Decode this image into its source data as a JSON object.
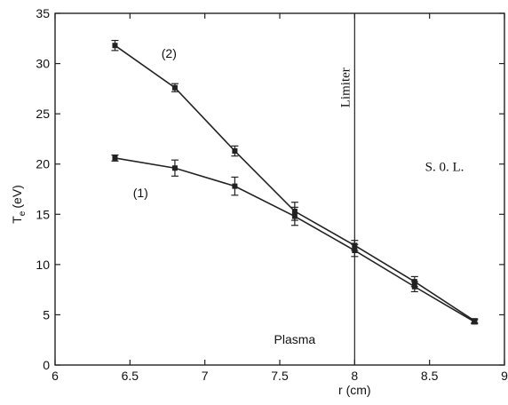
{
  "chart_data": {
    "type": "line",
    "title": "",
    "xlabel": "r (cm)",
    "ylabel": "Te (eV)",
    "ylabel_main": "T",
    "ylabel_sub": "e",
    "ylabel_unit": "(eV)",
    "xlim": [
      6,
      9
    ],
    "ylim": [
      0,
      35
    ],
    "xticks": [
      6,
      6.5,
      7,
      7.5,
      8,
      8.5,
      9
    ],
    "xtick_labels": [
      "6",
      "6.5",
      "7",
      "7.5",
      "8",
      "8.5",
      "9"
    ],
    "yticks": [
      0,
      5,
      10,
      15,
      20,
      25,
      30,
      35
    ],
    "ytick_labels": [
      "0",
      "5",
      "10",
      "15",
      "20",
      "25",
      "30",
      "35"
    ],
    "grid": false,
    "series": [
      {
        "name": "(1)",
        "x": [
          6.4,
          6.8,
          7.2,
          7.6,
          8.0,
          8.4,
          8.8
        ],
        "y": [
          20.6,
          19.6,
          17.8,
          14.8,
          11.4,
          7.8,
          4.3
        ],
        "err": [
          0.3,
          0.8,
          0.9,
          0.9,
          0.6,
          0.5,
          0.2
        ]
      },
      {
        "name": "(2)",
        "x": [
          6.4,
          6.8,
          7.2,
          7.6,
          8.0,
          8.4,
          8.8
        ],
        "y": [
          31.8,
          27.6,
          21.3,
          15.3,
          11.9,
          8.3,
          4.4
        ],
        "err": [
          0.5,
          0.4,
          0.5,
          0.9,
          0.5,
          0.5,
          0.2
        ]
      }
    ],
    "annotations": {
      "limiter_x": 8,
      "limiter_label": "Limiter",
      "sol_label": "S. 0. L.",
      "plasma_label": "Plasma",
      "series1_label": "(1)",
      "series2_label": "(2)"
    }
  }
}
